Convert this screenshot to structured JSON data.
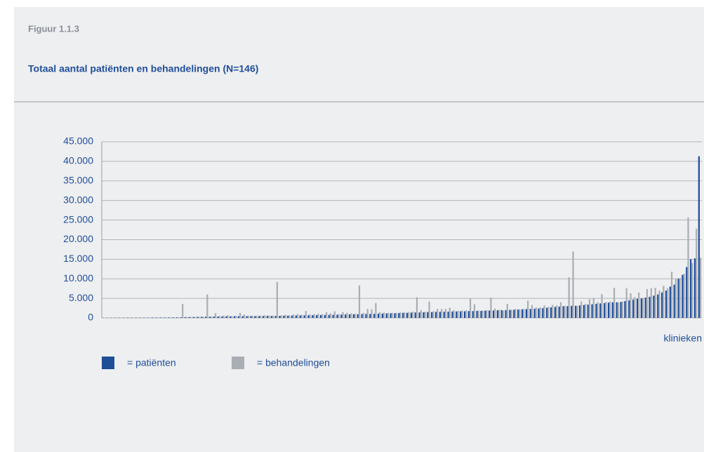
{
  "header": {
    "figure": "Figuur 1.1.3"
  },
  "chart_data": {
    "type": "bar",
    "title": "Totaal aantal patiënten en behandelingen (N=146)",
    "x_label": "klinieken",
    "ylim": [
      0,
      45000
    ],
    "yticks": [
      0,
      {
        "value": 5000,
        "label": "5.000"
      },
      {
        "value": 10000,
        "label": "10.000"
      },
      {
        "value": 15000,
        "label": "15.000"
      },
      {
        "value": 20000,
        "label": "20.000"
      },
      {
        "value": 25000,
        "label": "25.000"
      },
      {
        "value": 30000,
        "label": "30.000"
      },
      {
        "value": 35000,
        "label": "35.000"
      },
      {
        "value": 40000,
        "label": "40.000"
      },
      {
        "value": 45000,
        "label": "45.000"
      }
    ],
    "grid": true,
    "legend": "bottom-left",
    "series": [
      {
        "name": "= patiënten",
        "color": "#1f4e99",
        "values": [
          50,
          50,
          60,
          60,
          70,
          70,
          80,
          80,
          90,
          90,
          100,
          100,
          110,
          110,
          120,
          120,
          130,
          140,
          150,
          160,
          200,
          220,
          240,
          260,
          280,
          300,
          320,
          340,
          360,
          380,
          400,
          400,
          420,
          420,
          440,
          440,
          460,
          460,
          480,
          480,
          500,
          500,
          520,
          540,
          560,
          580,
          600,
          620,
          640,
          660,
          680,
          700,
          720,
          740,
          760,
          780,
          800,
          820,
          850,
          880,
          900,
          920,
          950,
          980,
          1000,
          1000,
          1050,
          1100,
          1100,
          1150,
          1200,
          1200,
          1250,
          1300,
          1300,
          1350,
          1400,
          1400,
          1450,
          1500,
          1500,
          1550,
          1550,
          1600,
          1600,
          1650,
          1650,
          1700,
          1700,
          1750,
          1750,
          1800,
          1800,
          1850,
          1900,
          1900,
          1950,
          2000,
          2000,
          2050,
          2100,
          2150,
          2200,
          2250,
          2300,
          2350,
          2400,
          2500,
          2600,
          2700,
          2800,
          2900,
          3000,
          3000,
          3100,
          3100,
          3200,
          3300,
          3400,
          3500,
          3600,
          3700,
          3800,
          3900,
          4000,
          4000,
          4100,
          4300,
          4500,
          4700,
          4900,
          5000,
          5200,
          5400,
          5700,
          6000,
          6500,
          7000,
          8000,
          8500,
          10000,
          11000,
          13000,
          15000,
          15200,
          41300
        ]
      },
      {
        "name": "= behandelingen",
        "color": "#a9aeb5",
        "values": [
          60,
          60,
          70,
          70,
          80,
          80,
          90,
          90,
          100,
          100,
          110,
          110,
          120,
          120,
          130,
          130,
          150,
          160,
          170,
          3600,
          250,
          260,
          280,
          300,
          320,
          6000,
          400,
          1200,
          500,
          600,
          700,
          500,
          550,
          1300,
          900,
          600,
          600,
          550,
          600,
          700,
          650,
          600,
          9200,
          700,
          800,
          700,
          900,
          1000,
          800,
          1800,
          900,
          1000,
          1100,
          1000,
          1500,
          1200,
          1700,
          1000,
          1500,
          1300,
          1200,
          1100,
          8300,
          1300,
          2300,
          2200,
          3800,
          1500,
          1400,
          1300,
          1300,
          1300,
          1400,
          1400,
          1500,
          1600,
          5300,
          2000,
          1600,
          4200,
          1700,
          2300,
          2300,
          2300,
          2600,
          2000,
          1800,
          1900,
          2000,
          4900,
          3500,
          1900,
          1900,
          2000,
          5200,
          2400,
          2100,
          1900,
          3600,
          2100,
          2300,
          2200,
          2300,
          4400,
          3300,
          2700,
          2700,
          3200,
          2800,
          3300,
          3200,
          4000,
          3100,
          10400,
          17000,
          3100,
          4200,
          3600,
          4800,
          5100,
          4000,
          6100,
          4100,
          4200,
          7700,
          4000,
          4200,
          7600,
          6300,
          5300,
          6500,
          5000,
          7400,
          7600,
          7700,
          7000,
          8200,
          7600,
          11800,
          10100,
          10200,
          11300,
          25700,
          14000,
          22800,
          15400
        ]
      }
    ]
  }
}
